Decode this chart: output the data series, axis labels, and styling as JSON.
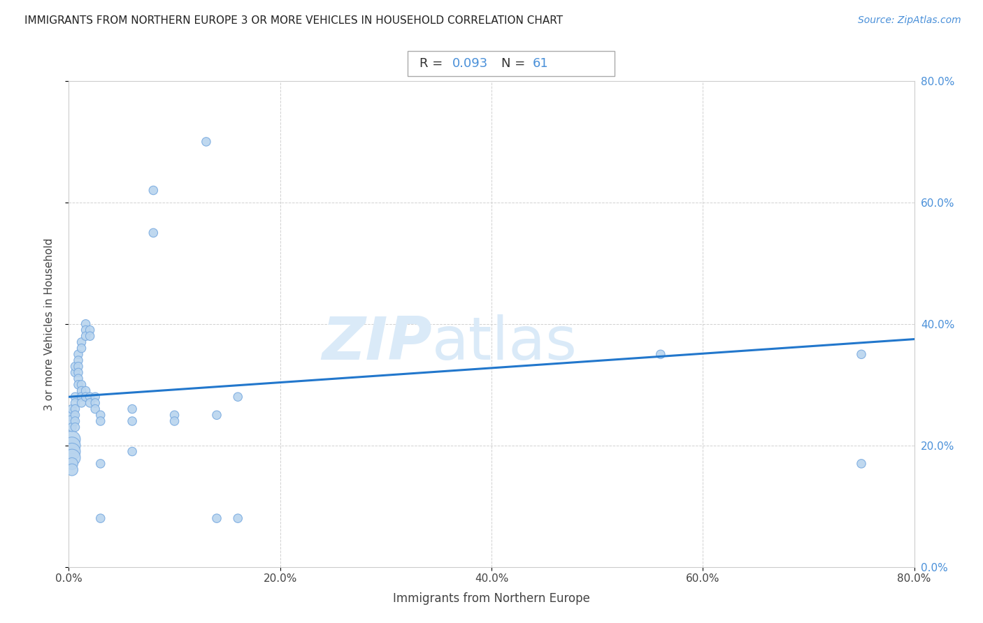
{
  "title": "IMMIGRANTS FROM NORTHERN EUROPE 3 OR MORE VEHICLES IN HOUSEHOLD CORRELATION CHART",
  "source": "Source: ZipAtlas.com",
  "xlabel": "Immigrants from Northern Europe",
  "ylabel": "3 or more Vehicles in Household",
  "R": 0.093,
  "N": 61,
  "xlim": [
    0.0,
    0.8
  ],
  "ylim": [
    0.0,
    0.8
  ],
  "xticks": [
    0.0,
    0.2,
    0.4,
    0.6,
    0.8
  ],
  "yticks": [
    0.0,
    0.2,
    0.4,
    0.6,
    0.8
  ],
  "xtick_labels": [
    "0.0%",
    "20.0%",
    "40.0%",
    "60.0%",
    "80.0%"
  ],
  "ytick_labels": [
    "0.0%",
    "20.0%",
    "40.0%",
    "60.0%",
    "80.0%"
  ],
  "scatter_color": "#b8d4ee",
  "scatter_edge_color": "#7aabe0",
  "line_color": "#2277cc",
  "watermark_zip": "ZIP",
  "watermark_atlas": "atlas",
  "watermark_color": "#daeaf8",
  "line_y0": 0.28,
  "line_y1": 0.375,
  "scatter_x": [
    0.003,
    0.003,
    0.003,
    0.003,
    0.003,
    0.003,
    0.003,
    0.003,
    0.003,
    0.003,
    0.006,
    0.006,
    0.006,
    0.006,
    0.006,
    0.006,
    0.006,
    0.006,
    0.009,
    0.009,
    0.009,
    0.009,
    0.009,
    0.009,
    0.012,
    0.012,
    0.012,
    0.012,
    0.012,
    0.012,
    0.016,
    0.016,
    0.016,
    0.016,
    0.016,
    0.02,
    0.02,
    0.02,
    0.02,
    0.025,
    0.025,
    0.025,
    0.03,
    0.03,
    0.03,
    0.03,
    0.06,
    0.06,
    0.06,
    0.08,
    0.08,
    0.1,
    0.1,
    0.13,
    0.14,
    0.14,
    0.16,
    0.16,
    0.56,
    0.75,
    0.75
  ],
  "scatter_y": [
    0.21,
    0.2,
    0.19,
    0.18,
    0.17,
    0.16,
    0.25,
    0.24,
    0.26,
    0.23,
    0.28,
    0.27,
    0.26,
    0.25,
    0.24,
    0.23,
    0.32,
    0.33,
    0.35,
    0.34,
    0.33,
    0.32,
    0.31,
    0.3,
    0.37,
    0.36,
    0.3,
    0.29,
    0.28,
    0.27,
    0.4,
    0.39,
    0.38,
    0.29,
    0.28,
    0.39,
    0.38,
    0.28,
    0.27,
    0.28,
    0.27,
    0.26,
    0.25,
    0.24,
    0.17,
    0.08,
    0.26,
    0.24,
    0.19,
    0.62,
    0.55,
    0.25,
    0.24,
    0.7,
    0.25,
    0.08,
    0.28,
    0.08,
    0.35,
    0.35,
    0.17
  ],
  "scatter_sizes": [
    300,
    300,
    300,
    300,
    150,
    150,
    150,
    150,
    80,
    80,
    80,
    80,
    80,
    80,
    80,
    80,
    80,
    80,
    80,
    80,
    80,
    80,
    80,
    80,
    80,
    80,
    80,
    80,
    80,
    80,
    80,
    80,
    80,
    80,
    80,
    80,
    80,
    80,
    80,
    80,
    80,
    80,
    80,
    80,
    80,
    80,
    80,
    80,
    80,
    80,
    80,
    80,
    80,
    80,
    80,
    80,
    80,
    80,
    80,
    80,
    80
  ]
}
